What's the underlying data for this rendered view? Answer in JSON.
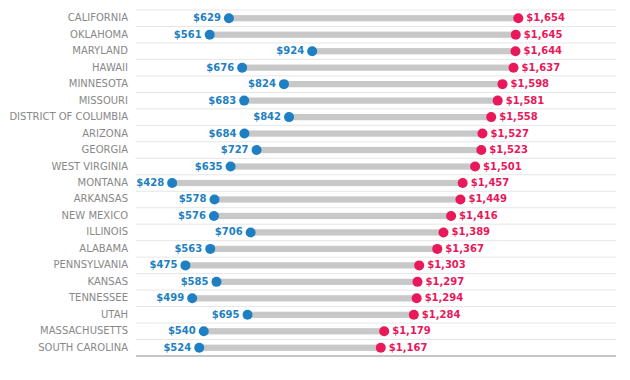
{
  "chart_data": {
    "type": "dumbbell",
    "orientation": "horizontal",
    "categories": [
      "CALIFORNIA",
      "OKLAHOMA",
      "MARYLAND",
      "HAWAII",
      "MINNESOTA",
      "MISSOURI",
      "DISTRICT OF COLUMBIA",
      "ARIZONA",
      "GEORGIA",
      "WEST VIRGINIA",
      "MONTANA",
      "ARKANSAS",
      "NEW MEXICO",
      "ILLINOIS",
      "ALABAMA",
      "PENNSYLVANIA",
      "KANSAS",
      "TENNESSEE",
      "UTAH",
      "MASSACHUSETTS",
      "SOUTH CAROLINA"
    ],
    "series": [
      {
        "color": "#1e7fc2",
        "values": [
          629,
          561,
          924,
          676,
          824,
          683,
          842,
          684,
          727,
          635,
          428,
          578,
          576,
          706,
          563,
          475,
          585,
          499,
          695,
          540,
          524
        ],
        "value_labels": [
          "$629",
          "$561",
          "$924",
          "$676",
          "$824",
          "$683",
          "$842",
          "$684",
          "$727",
          "$635",
          "$428",
          "$578",
          "$576",
          "$706",
          "$563",
          "$475",
          "$585",
          "$499",
          "$695",
          "$540",
          "$524"
        ]
      },
      {
        "color": "#e8185a",
        "values": [
          1654,
          1645,
          1644,
          1637,
          1598,
          1581,
          1558,
          1527,
          1523,
          1501,
          1457,
          1449,
          1416,
          1389,
          1367,
          1303,
          1297,
          1294,
          1284,
          1179,
          1167
        ],
        "value_labels": [
          "$1,654",
          "$1,645",
          "$1,644",
          "$1,637",
          "$1,598",
          "$1,581",
          "$1,558",
          "$1,527",
          "$1,523",
          "$1,501",
          "$1,457",
          "$1,449",
          "$1,416",
          "$1,389",
          "$1,367",
          "$1,303",
          "$1,297",
          "$1,294",
          "$1,284",
          "$1,179",
          "$1,167"
        ]
      }
    ],
    "color": "#c8c8c8",
    "xlim": [
      300,
      2000
    ],
    "data_labels": true,
    "tick_labels": "y",
    "grid": true
  }
}
